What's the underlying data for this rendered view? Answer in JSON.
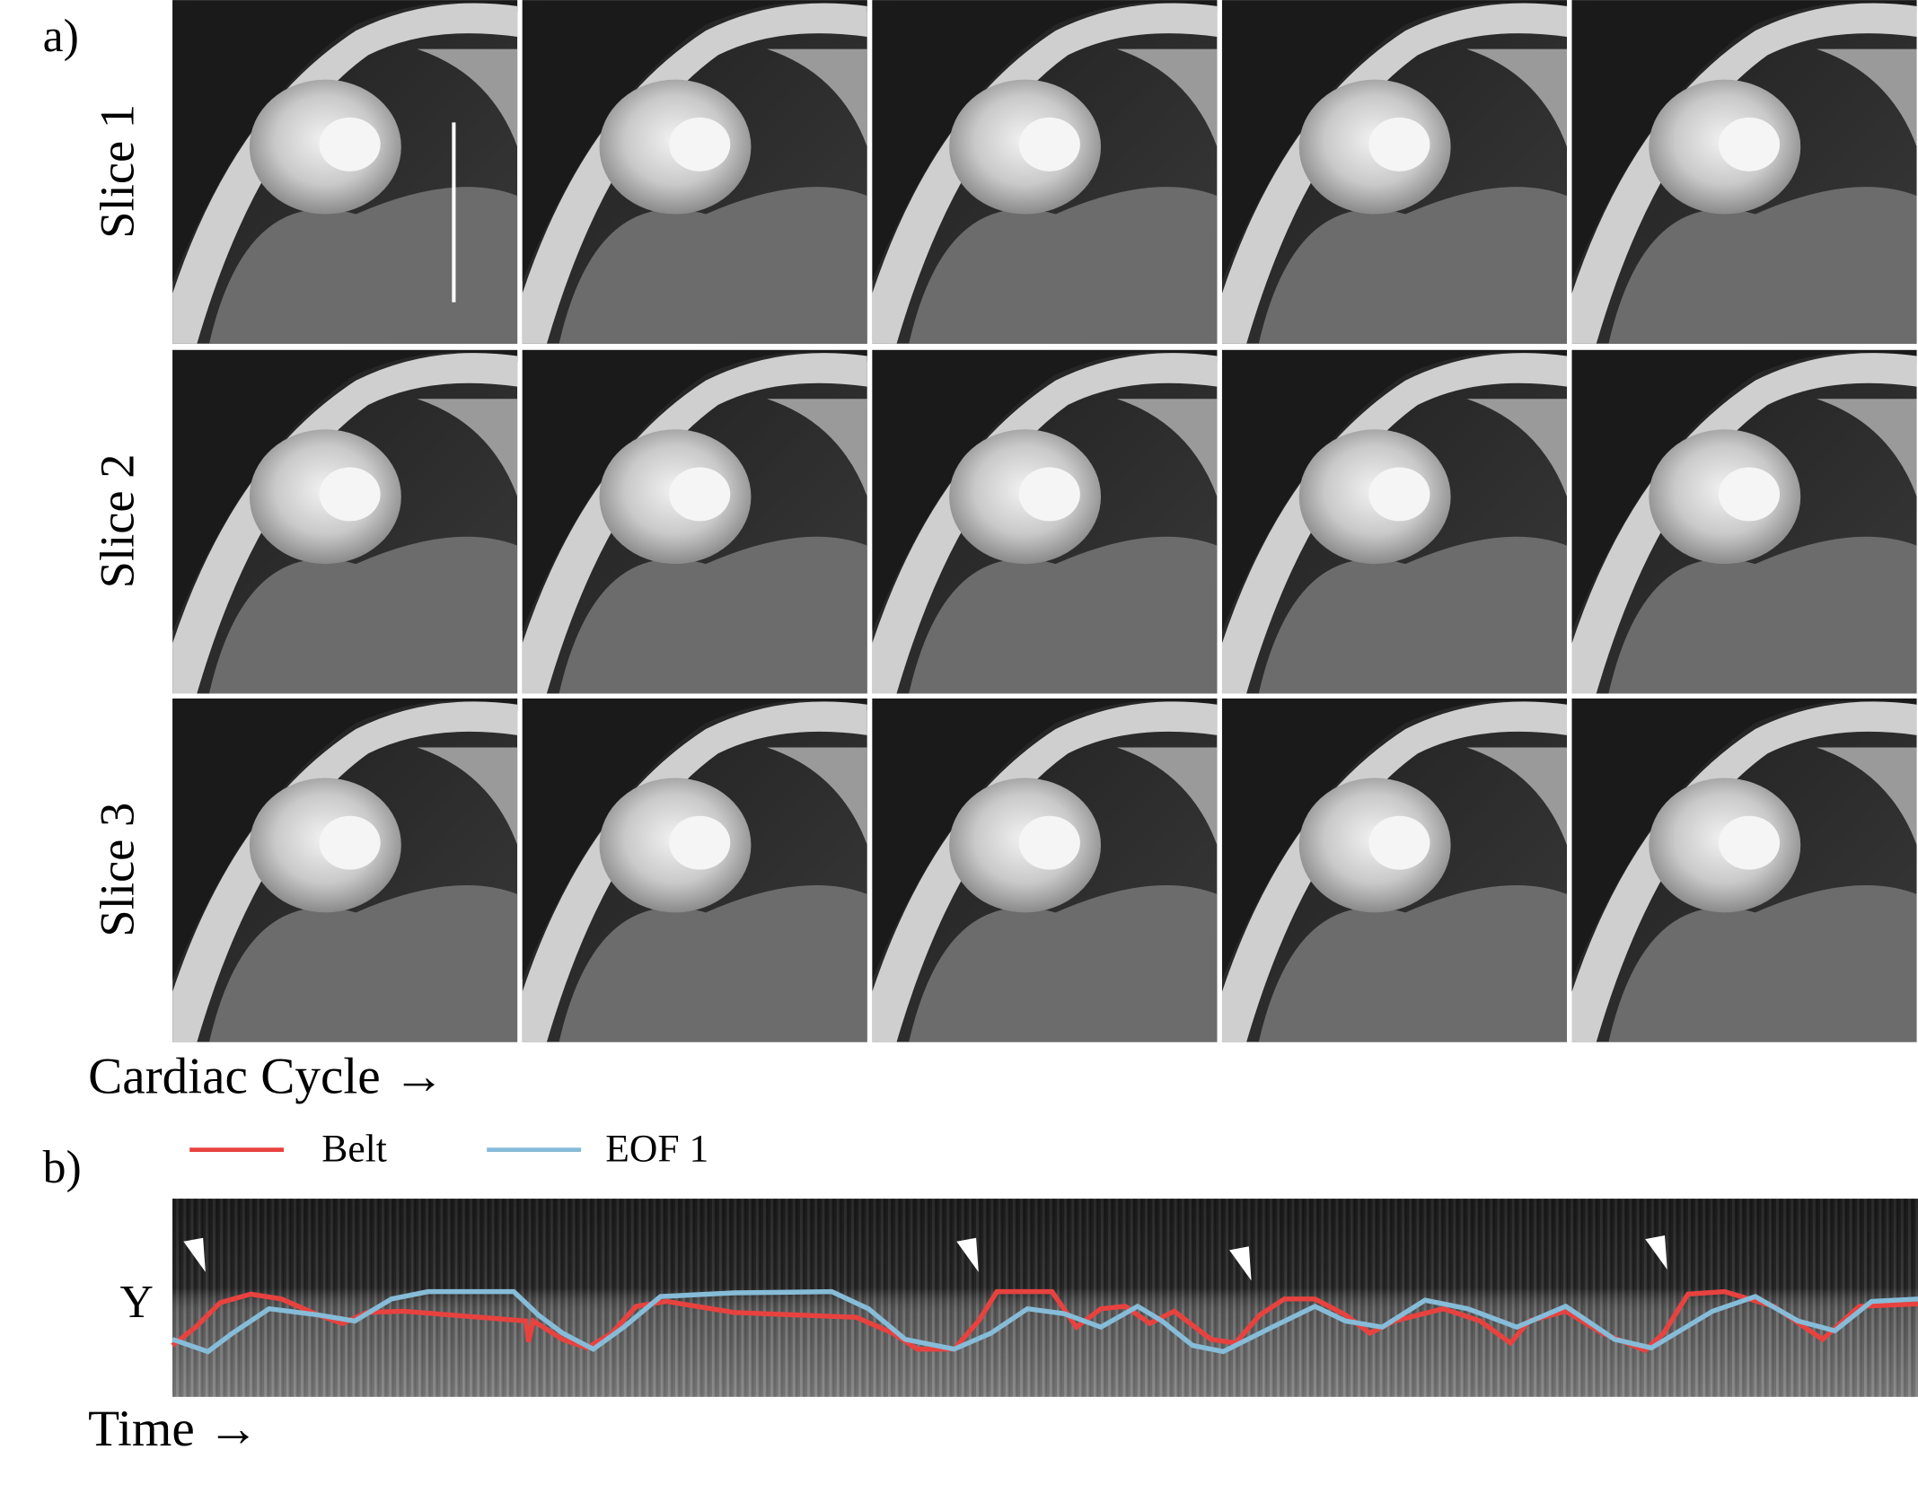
{
  "panel_a": {
    "label": "a)",
    "rows": [
      "Slice 1",
      "Slice 2",
      "Slice 3"
    ],
    "axis_label": "Cardiac Cycle →"
  },
  "panel_b": {
    "label": "b)",
    "legend": [
      {
        "name": "Belt",
        "color": "#e8423f"
      },
      {
        "name": "EOF 1",
        "color": "#86bcd8"
      }
    ],
    "y_label": "Y",
    "axis_label": "Time →"
  }
}
